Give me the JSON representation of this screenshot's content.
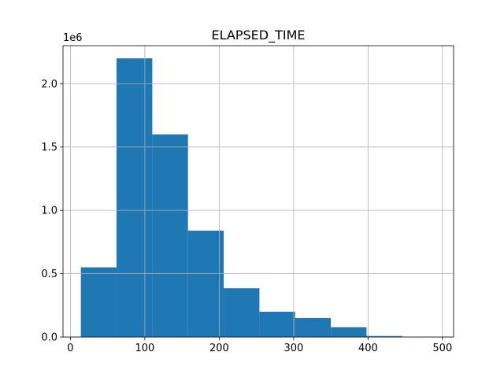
{
  "chart_data": {
    "type": "bar",
    "title": "ELAPSED_TIME",
    "xlabel": "",
    "ylabel": "",
    "xlim": [
      -10,
      515
    ],
    "ylim": [
      0,
      2300000
    ],
    "y_offset_label": "1e6",
    "x_ticks": [
      0,
      100,
      200,
      300,
      400,
      500
    ],
    "x_tick_labels": [
      "0",
      "100",
      "200",
      "300",
      "400",
      "500"
    ],
    "y_ticks": [
      0,
      500000,
      1000000,
      1500000,
      2000000
    ],
    "y_tick_labels": [
      "0.0",
      "0.5",
      "1.0",
      "1.5",
      "2.0"
    ],
    "grid": true,
    "bar_color": "#1f77b4",
    "bins": [
      {
        "x0": 14,
        "x1": 62,
        "value": 550000
      },
      {
        "x0": 62,
        "x1": 110,
        "value": 2200000
      },
      {
        "x0": 110,
        "x1": 158,
        "value": 1600000
      },
      {
        "x0": 158,
        "x1": 206,
        "value": 840000
      },
      {
        "x0": 206,
        "x1": 254,
        "value": 385000
      },
      {
        "x0": 254,
        "x1": 302,
        "value": 200000
      },
      {
        "x0": 302,
        "x1": 350,
        "value": 150000
      },
      {
        "x0": 350,
        "x1": 398,
        "value": 78000
      },
      {
        "x0": 398,
        "x1": 446,
        "value": 8000
      },
      {
        "x0": 446,
        "x1": 494,
        "value": 1000
      }
    ]
  }
}
